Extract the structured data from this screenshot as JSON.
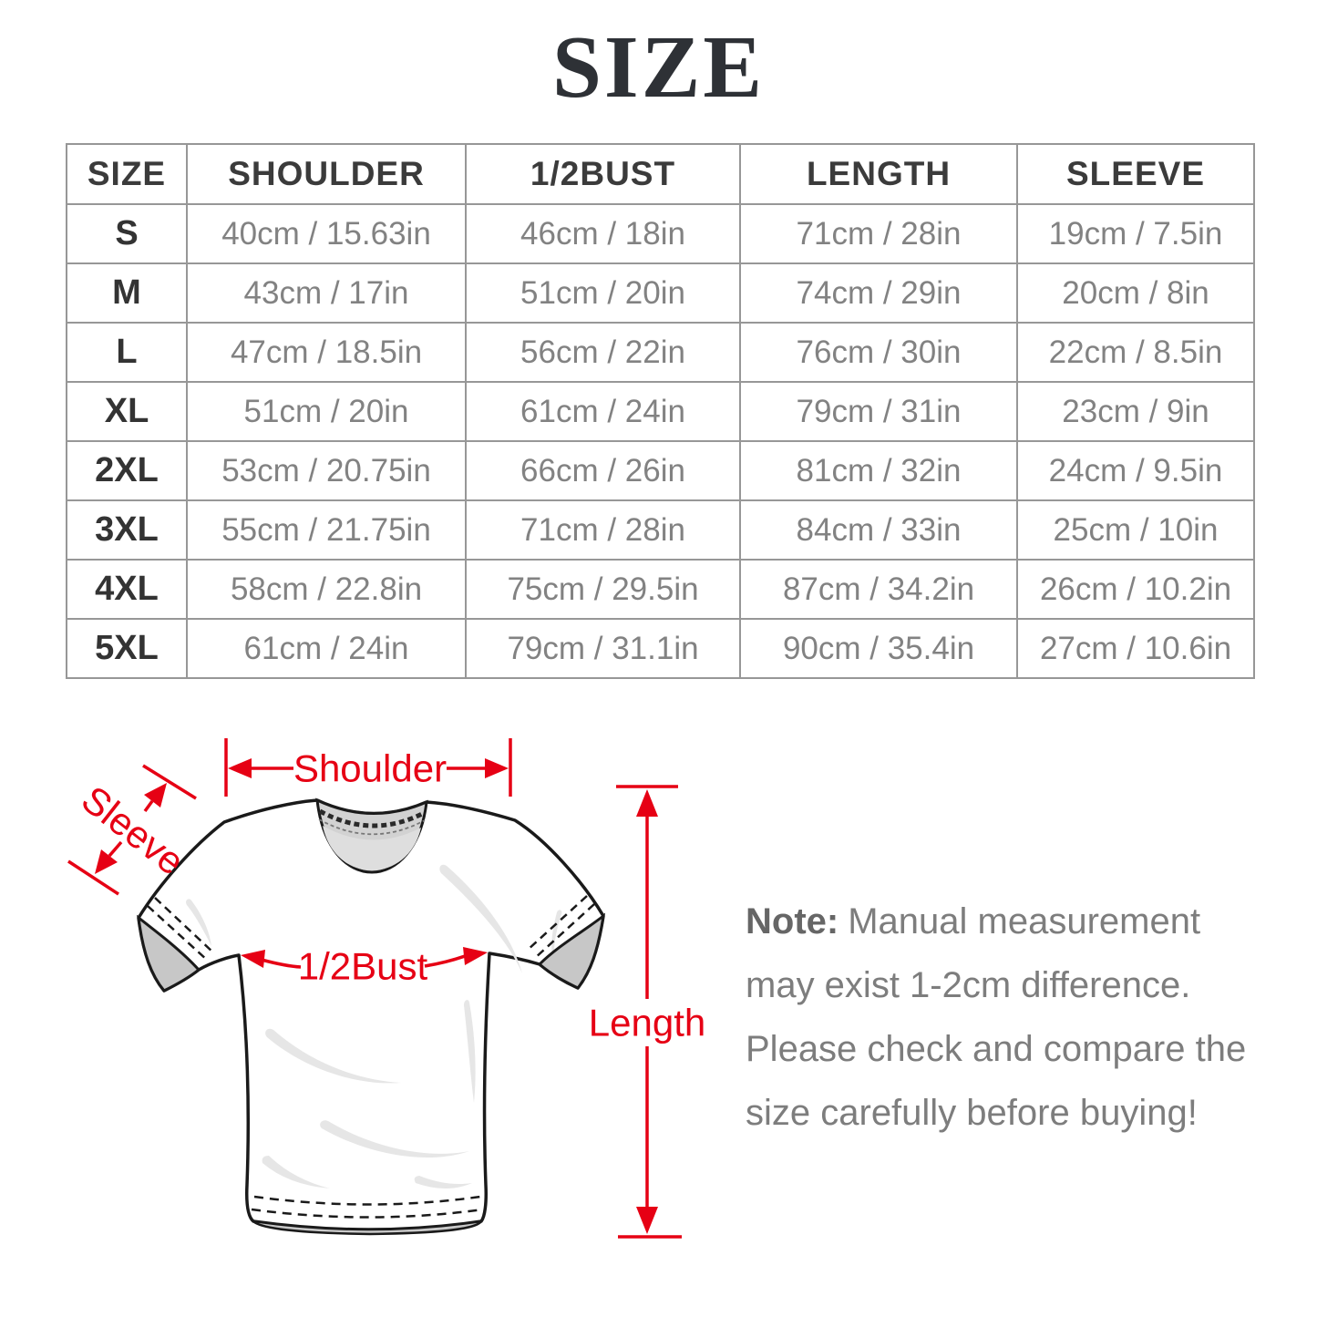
{
  "page": {
    "title": "SIZE",
    "background_color": "#ffffff",
    "accent_color": "#e60014",
    "table_text_color": "#828282",
    "header_text_color": "#3b3b3b"
  },
  "size_table": {
    "headers": [
      "SIZE",
      "SHOULDER",
      "1/2BUST",
      "LENGTH",
      "SLEEVE"
    ],
    "rows": [
      {
        "size": "S",
        "shoulder": "40cm / 15.63in",
        "half_bust": "46cm / 18in",
        "length": "71cm / 28in",
        "sleeve": "19cm / 7.5in"
      },
      {
        "size": "M",
        "shoulder": "43cm / 17in",
        "half_bust": "51cm / 20in",
        "length": "74cm / 29in",
        "sleeve": "20cm / 8in"
      },
      {
        "size": "L",
        "shoulder": "47cm / 18.5in",
        "half_bust": "56cm / 22in",
        "length": "76cm / 30in",
        "sleeve": "22cm / 8.5in"
      },
      {
        "size": "XL",
        "shoulder": "51cm / 20in",
        "half_bust": "61cm / 24in",
        "length": "79cm / 31in",
        "sleeve": "23cm / 9in"
      },
      {
        "size": "2XL",
        "shoulder": "53cm / 20.75in",
        "half_bust": "66cm / 26in",
        "length": "81cm / 32in",
        "sleeve": "24cm / 9.5in"
      },
      {
        "size": "3XL",
        "shoulder": "55cm / 21.75in",
        "half_bust": "71cm / 28in",
        "length": "84cm / 33in",
        "sleeve": "25cm / 10in"
      },
      {
        "size": "4XL",
        "shoulder": "58cm / 22.8in",
        "half_bust": "75cm / 29.5in",
        "length": "87cm / 34.2in",
        "sleeve": "26cm / 10.2in"
      },
      {
        "size": "5XL",
        "shoulder": "61cm / 24in",
        "half_bust": "79cm / 31.1in",
        "length": "90cm / 35.4in",
        "sleeve": "27cm / 10.6in"
      }
    ]
  },
  "diagram": {
    "labels": {
      "shoulder": "Shoulder",
      "sleeve": "Sleeve",
      "half_bust": "1/2Bust",
      "length": "Length"
    }
  },
  "note": {
    "label": "Note:",
    "text": "Manual measurement may exist 1-2cm difference. Please check and compare the size carefully before buying!"
  }
}
